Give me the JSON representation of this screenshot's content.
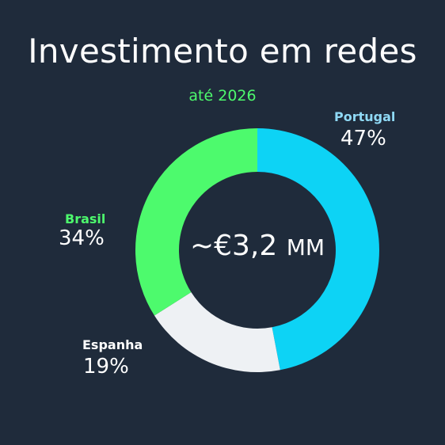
{
  "title": "Investimento em redes",
  "subtitle": "até 2026",
  "center": {
    "value": "~€3,2",
    "unit": "MM"
  },
  "colors": {
    "background": "#1f2b3b",
    "subtitle": "#4dfa6d",
    "ring_hole": "#1f2b3b"
  },
  "chart_data": {
    "type": "pie",
    "donut": true,
    "total_label": "~€3,2 MM",
    "categories": [
      "Portugal",
      "Espanha",
      "Brasil"
    ],
    "values": [
      47,
      19,
      34
    ],
    "value_labels": [
      "47%",
      "19%",
      "34%"
    ],
    "colors": [
      "#0dd3f5",
      "#eef1f4",
      "#4dfa6d"
    ],
    "label_colors": [
      "#8fd9f5",
      "#ffffff",
      "#4dfa6d"
    ]
  }
}
